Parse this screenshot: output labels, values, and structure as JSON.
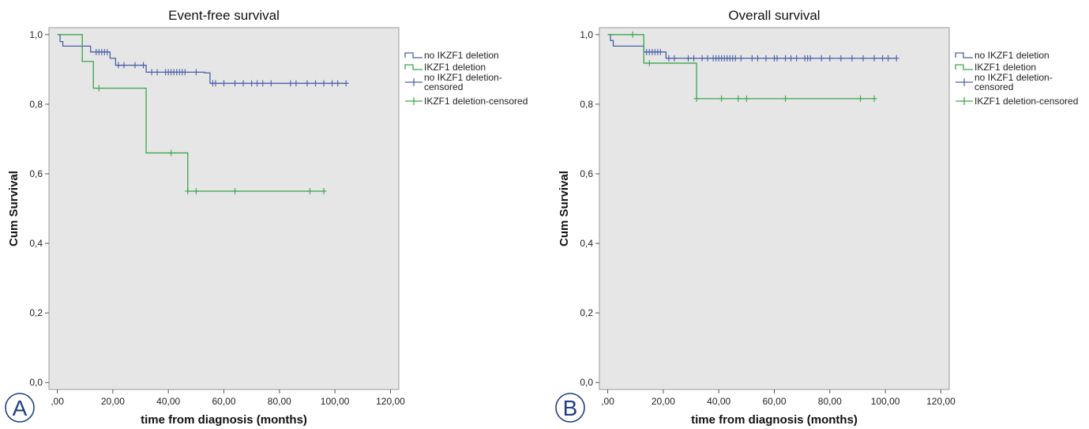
{
  "chart_data": [
    {
      "panel_label": "A",
      "type": "line",
      "title": "Event-free survival",
      "xlabel": "time from diagnosis (months)",
      "ylabel": "Cum Survival",
      "xlim": [
        -3,
        123
      ],
      "ylim": [
        -0.02,
        1.02
      ],
      "xticks": [
        ",00",
        "20,00",
        "40,00",
        "60,00",
        "80,00",
        "100,00",
        "120,00"
      ],
      "xtick_values": [
        0,
        20,
        40,
        60,
        80,
        100,
        120
      ],
      "yticks": [
        "0,0",
        "0,2",
        "0,4",
        "0,6",
        "0,8",
        "1,0"
      ],
      "ytick_values": [
        0,
        0.2,
        0.4,
        0.6,
        0.8,
        1.0
      ],
      "grid": false,
      "legend_position": "right",
      "legend": [
        "no IKZF1 deletion",
        "IKZF1 deletion",
        "no IKZF1 deletion-censored",
        "IKZF1 deletion-censored"
      ],
      "series": [
        {
          "name": "no IKZF1 deletion",
          "color": "#4a5fa8",
          "steps": [
            [
              0,
              1.0
            ],
            [
              1,
              0.98
            ],
            [
              2,
              0.967
            ],
            [
              12,
              0.95
            ],
            [
              19,
              0.932
            ],
            [
              21,
              0.912
            ],
            [
              32,
              0.892
            ],
            [
              53,
              0.89
            ],
            [
              55,
              0.86
            ],
            [
              104,
              0.86
            ]
          ],
          "censored": [
            [
              14,
              0.95
            ],
            [
              15,
              0.95
            ],
            [
              16,
              0.95
            ],
            [
              17,
              0.95
            ],
            [
              18,
              0.95
            ],
            [
              22,
              0.912
            ],
            [
              24,
              0.912
            ],
            [
              28,
              0.912
            ],
            [
              31,
              0.912
            ],
            [
              34,
              0.892
            ],
            [
              36,
              0.892
            ],
            [
              39,
              0.892
            ],
            [
              40,
              0.892
            ],
            [
              41,
              0.892
            ],
            [
              42,
              0.892
            ],
            [
              43,
              0.892
            ],
            [
              44,
              0.892
            ],
            [
              45,
              0.892
            ],
            [
              46,
              0.892
            ],
            [
              50,
              0.892
            ],
            [
              56,
              0.86
            ],
            [
              57,
              0.86
            ],
            [
              60,
              0.86
            ],
            [
              64,
              0.86
            ],
            [
              67,
              0.86
            ],
            [
              70,
              0.86
            ],
            [
              72,
              0.86
            ],
            [
              74,
              0.86
            ],
            [
              77,
              0.86
            ],
            [
              84,
              0.86
            ],
            [
              86,
              0.86
            ],
            [
              90,
              0.86
            ],
            [
              93,
              0.86
            ],
            [
              96,
              0.86
            ],
            [
              99,
              0.86
            ],
            [
              101,
              0.86
            ],
            [
              104,
              0.86
            ]
          ]
        },
        {
          "name": "IKZF1 deletion",
          "color": "#3aa648",
          "steps": [
            [
              0,
              1.0
            ],
            [
              9,
              0.923
            ],
            [
              13,
              0.846
            ],
            [
              32,
              0.66
            ],
            [
              47,
              0.55
            ],
            [
              96,
              0.55
            ]
          ],
          "censored": [
            [
              15,
              0.846
            ],
            [
              41,
              0.66
            ],
            [
              47,
              0.55
            ],
            [
              50,
              0.55
            ],
            [
              64,
              0.55
            ],
            [
              91,
              0.55
            ],
            [
              96,
              0.55
            ]
          ]
        }
      ]
    },
    {
      "panel_label": "B",
      "type": "line",
      "title": "Overall survival",
      "xlabel": "time from diagnosis (months)",
      "ylabel": "Cum Survival",
      "xlim": [
        -3,
        123
      ],
      "ylim": [
        -0.02,
        1.02
      ],
      "xticks": [
        ",00",
        "20,00",
        "40,00",
        "60,00",
        "80,00",
        "100,00",
        "120,00"
      ],
      "xtick_values": [
        0,
        20,
        40,
        60,
        80,
        100,
        120
      ],
      "yticks": [
        "0,0",
        "0,2",
        "0,4",
        "0,6",
        "0,8",
        "1,0"
      ],
      "ytick_values": [
        0,
        0.2,
        0.4,
        0.6,
        0.8,
        1.0
      ],
      "grid": false,
      "legend_position": "right",
      "legend": [
        "no IKZF1 deletion",
        "IKZF1 deletion",
        "no IKZF1 deletion-censored",
        "IKZF1 deletion-censored"
      ],
      "series": [
        {
          "name": "no IKZF1 deletion",
          "color": "#4a5fa8",
          "steps": [
            [
              0,
              1.0
            ],
            [
              1,
              0.983
            ],
            [
              2,
              0.967
            ],
            [
              13,
              0.95
            ],
            [
              21,
              0.932
            ],
            [
              104,
              0.932
            ]
          ],
          "censored": [
            [
              14,
              0.95
            ],
            [
              15,
              0.95
            ],
            [
              16,
              0.95
            ],
            [
              17,
              0.95
            ],
            [
              18,
              0.95
            ],
            [
              19,
              0.95
            ],
            [
              22,
              0.932
            ],
            [
              24,
              0.932
            ],
            [
              29,
              0.932
            ],
            [
              31,
              0.932
            ],
            [
              34,
              0.932
            ],
            [
              36,
              0.932
            ],
            [
              38,
              0.932
            ],
            [
              39,
              0.932
            ],
            [
              40,
              0.932
            ],
            [
              41,
              0.932
            ],
            [
              42,
              0.932
            ],
            [
              43,
              0.932
            ],
            [
              44,
              0.932
            ],
            [
              45,
              0.932
            ],
            [
              46,
              0.932
            ],
            [
              48,
              0.932
            ],
            [
              52,
              0.932
            ],
            [
              54,
              0.932
            ],
            [
              57,
              0.932
            ],
            [
              60,
              0.932
            ],
            [
              61,
              0.932
            ],
            [
              64,
              0.932
            ],
            [
              66,
              0.932
            ],
            [
              68,
              0.932
            ],
            [
              71,
              0.932
            ],
            [
              72,
              0.932
            ],
            [
              73,
              0.932
            ],
            [
              77,
              0.932
            ],
            [
              80,
              0.932
            ],
            [
              84,
              0.932
            ],
            [
              88,
              0.932
            ],
            [
              92,
              0.932
            ],
            [
              96,
              0.932
            ],
            [
              99,
              0.932
            ],
            [
              101,
              0.932
            ],
            [
              104,
              0.932
            ]
          ]
        },
        {
          "name": "IKZF1 deletion",
          "color": "#3aa648",
          "steps": [
            [
              0,
              1.0
            ],
            [
              13,
              0.918
            ],
            [
              32,
              0.816
            ],
            [
              96,
              0.816
            ]
          ],
          "censored": [
            [
              9,
              1.0
            ],
            [
              15,
              0.918
            ],
            [
              32,
              0.816
            ],
            [
              41,
              0.816
            ],
            [
              47,
              0.816
            ],
            [
              50,
              0.816
            ],
            [
              64,
              0.816
            ],
            [
              91,
              0.816
            ],
            [
              96,
              0.816
            ]
          ]
        }
      ]
    }
  ]
}
